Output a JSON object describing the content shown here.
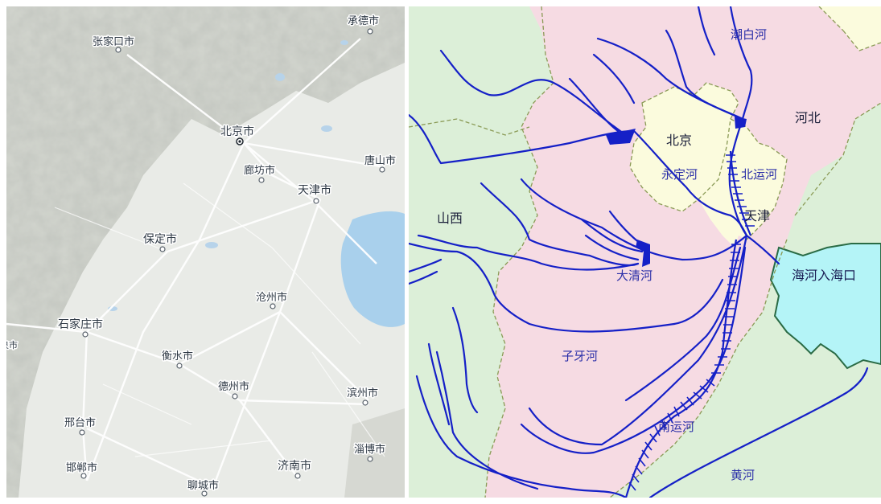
{
  "left_map": {
    "cities": [
      {
        "id": "zhangjiakou",
        "label": "张家口市",
        "type": "city"
      },
      {
        "id": "chengde",
        "label": "承德市",
        "type": "city"
      },
      {
        "id": "beijing",
        "label": "北京市",
        "type": "capital"
      },
      {
        "id": "langfang",
        "label": "廊坊市",
        "type": "city"
      },
      {
        "id": "tangshan",
        "label": "唐山市",
        "type": "city"
      },
      {
        "id": "tianjin",
        "label": "天津市",
        "type": "city"
      },
      {
        "id": "baoding",
        "label": "保定市",
        "type": "city"
      },
      {
        "id": "cangzhou",
        "label": "沧州市",
        "type": "city"
      },
      {
        "id": "shijiazhuang",
        "label": "石家庄市",
        "type": "city"
      },
      {
        "id": "hengshui",
        "label": "衡水市",
        "type": "city"
      },
      {
        "id": "dezhou",
        "label": "德州市",
        "type": "city"
      },
      {
        "id": "binzhou",
        "label": "滨州市",
        "type": "city"
      },
      {
        "id": "xingtai",
        "label": "邢台市",
        "type": "city"
      },
      {
        "id": "zibo",
        "label": "淄博市",
        "type": "city"
      },
      {
        "id": "handan",
        "label": "邯郸市",
        "type": "city"
      },
      {
        "id": "jinan",
        "label": "济南市",
        "type": "city"
      },
      {
        "id": "liaocheng",
        "label": "聊城市",
        "type": "city"
      },
      {
        "id": "partial",
        "label": "泉市",
        "type": "partial"
      }
    ],
    "colors": {
      "land": "#e9ebe7",
      "mountain": "#cfd2cc",
      "sea": "#a9d0ec",
      "road": "#ffffff",
      "text": "#2f3a46"
    }
  },
  "right_map": {
    "regions": {
      "hebei": "河北",
      "beijing": "北京",
      "tianjin": "天津",
      "shanxi": "山西"
    },
    "rivers": {
      "chaobai": "潮白河",
      "yongding": "永定河",
      "beiyun": "北运河",
      "daqing": "大清河",
      "ziya": "子牙河",
      "nanyun": "南运河",
      "huang": "黄河"
    },
    "sea_label": "海河入海口",
    "colors": {
      "hebei": "#f6dbe3",
      "beijing_tianjin": "#fbfbdd",
      "shanxi": "#dcefd8",
      "shandong": "#dcefd8",
      "sea": "#b4f4f7",
      "river": "#1520c7",
      "border": "#8a9a55",
      "coast": "#2a6b45"
    }
  }
}
